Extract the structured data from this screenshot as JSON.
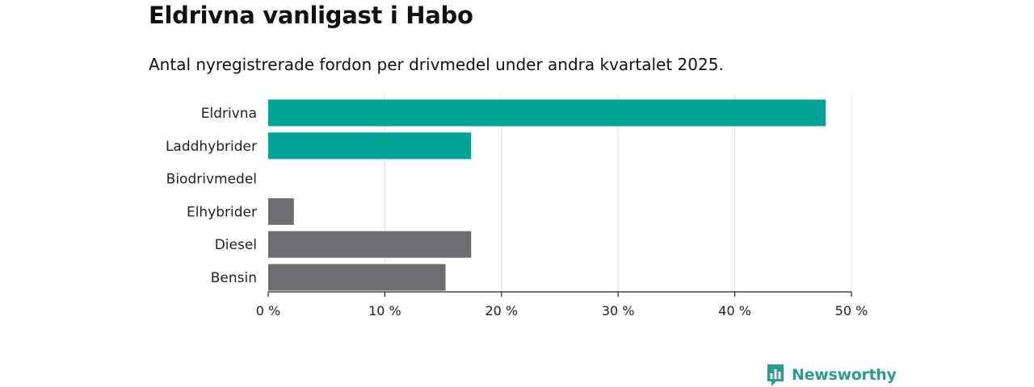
{
  "header": {
    "title": "Eldrivna vanligast i Habo",
    "subtitle": "Antal nyregistrerade fordon per drivmedel under andra kvartalet 2025."
  },
  "chart_data": {
    "type": "bar",
    "orientation": "horizontal",
    "categories": [
      "Eldrivna",
      "Laddhybrider",
      "Biodrivmedel",
      "Elhybrider",
      "Diesel",
      "Bensin"
    ],
    "values": [
      47.8,
      17.4,
      0,
      2.2,
      17.4,
      15.2
    ],
    "bar_colors": [
      "#00a396",
      "#00a396",
      "#00a396",
      "#6e6d72",
      "#6e6d72",
      "#6e6d72"
    ],
    "xlim": [
      0,
      50
    ],
    "x_ticks": [
      0,
      10,
      20,
      30,
      40,
      50
    ],
    "x_tick_labels": [
      "0 %",
      "10 %",
      "20 %",
      "30 %",
      "40 %",
      "50 %"
    ],
    "grid": true,
    "legend": "none"
  },
  "branding": {
    "logo_text": "Newsworthy",
    "logo_icon": "newsworthy-logo-icon",
    "color": "#2a9d8f"
  }
}
